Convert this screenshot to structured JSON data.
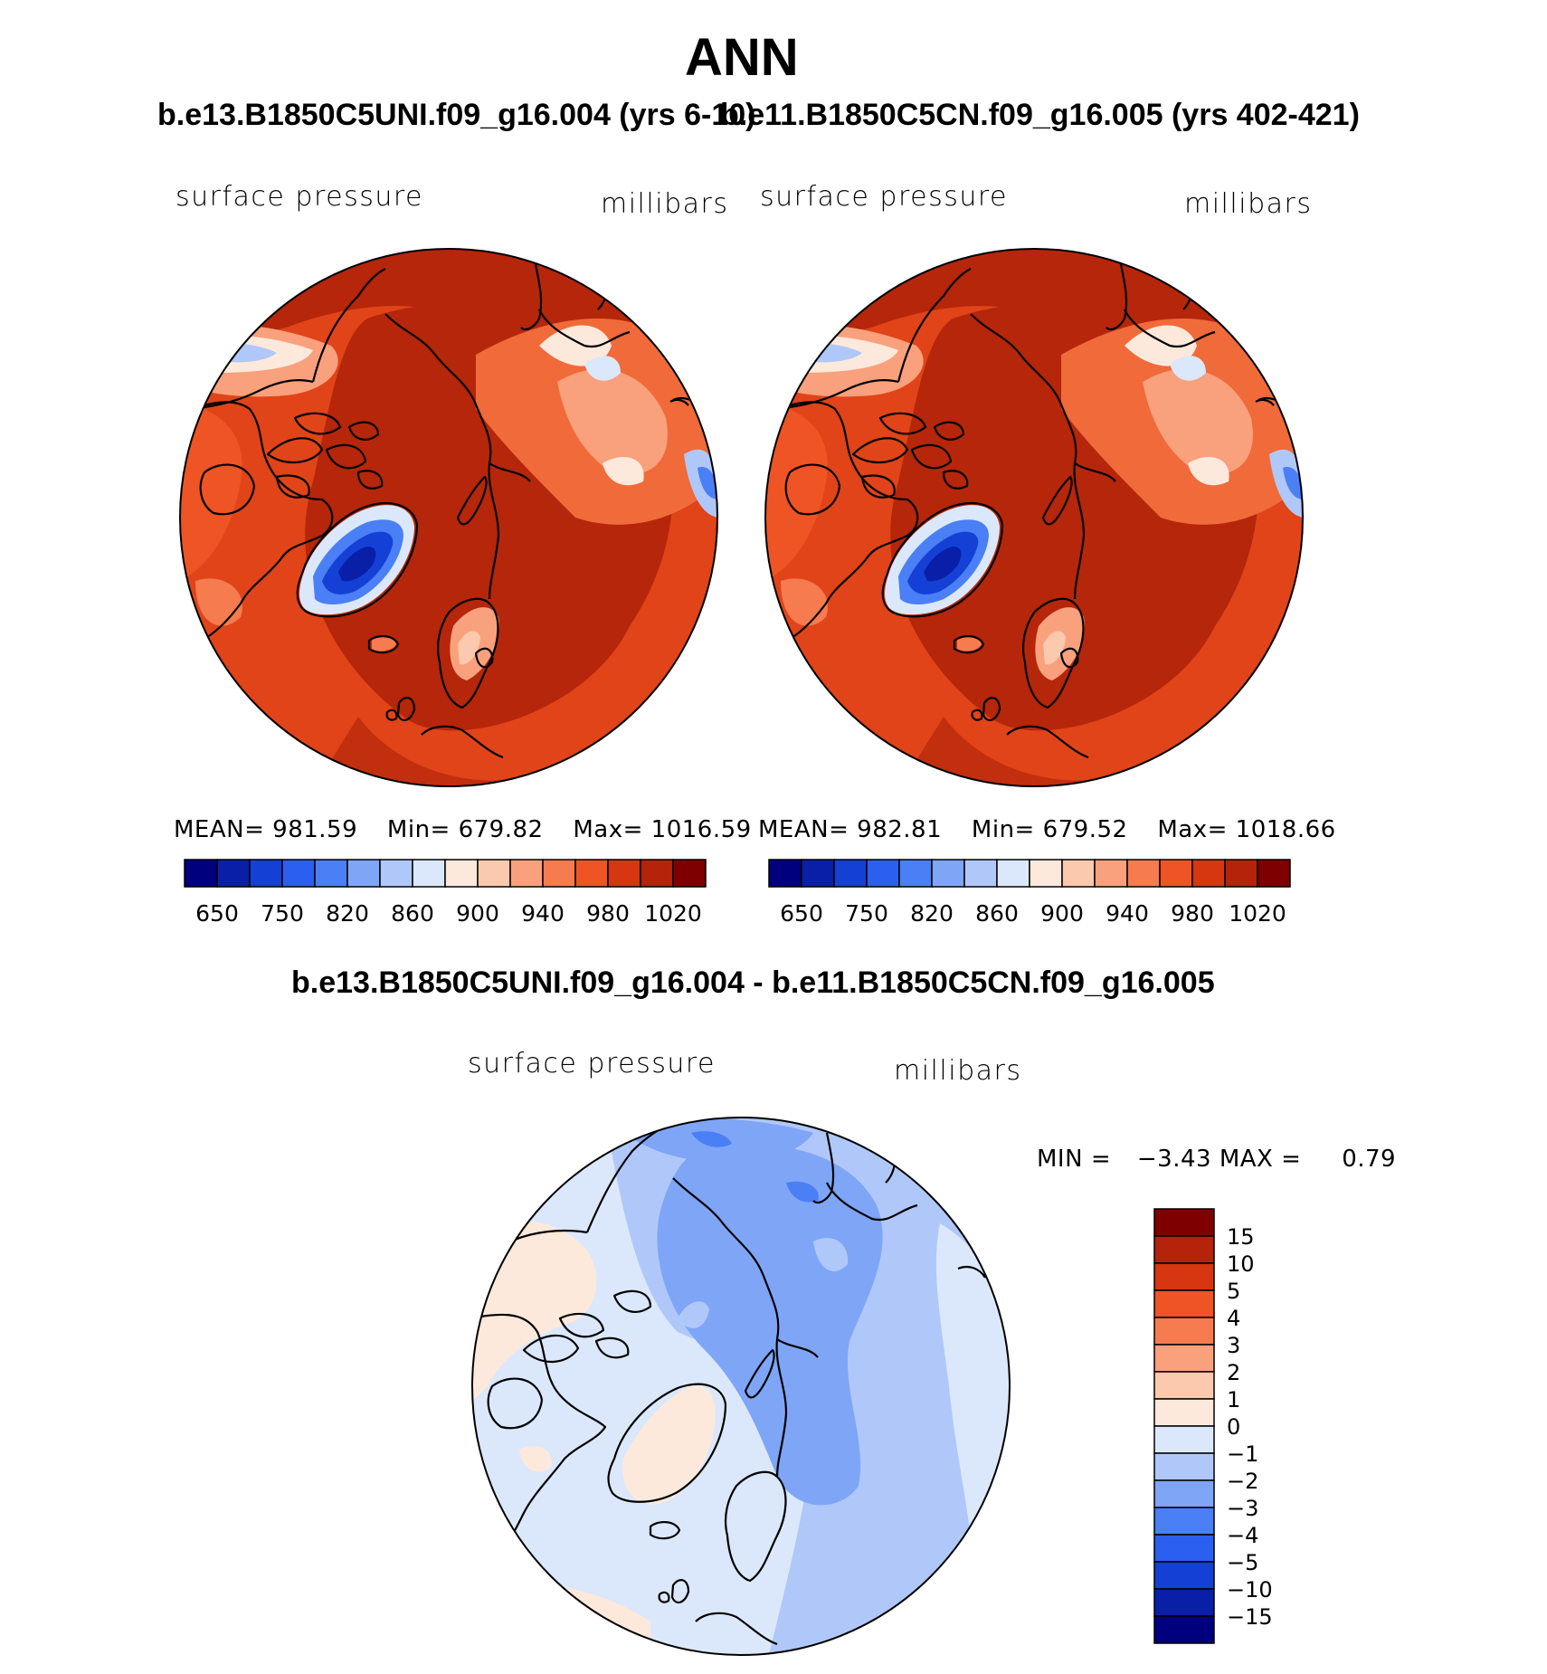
{
  "page": {
    "title": "ANN",
    "case1_title": "b.e13.B1850C5UNI.f09_g16.004 (yrs 6-10)",
    "case2_title": "b.e11.B1850C5CN.f09_g16.005 (yrs 402-421)",
    "diff_title": "b.e13.B1850C5UNI.f09_g16.004 - b.e11.B1850C5CN.f09_g16.005"
  },
  "colors": {
    "abs_scale": [
      "#00007f",
      "#0a1fa8",
      "#1540d6",
      "#2a5ff0",
      "#4a7ff5",
      "#7fa5f7",
      "#afc8f9",
      "#dbe8fb",
      "#fde9dc",
      "#fbc9ad",
      "#f9a07c",
      "#f67b4f",
      "#ef5424",
      "#d63610",
      "#b5230a",
      "#7f0000"
    ],
    "diff_scale": [
      "#00007f",
      "#0a1fa8",
      "#1540d6",
      "#2a5ff0",
      "#4a7ff5",
      "#7fa5f7",
      "#afc8f9",
      "#dbe8fb",
      "#fde9dc",
      "#fbc9ad",
      "#f9a07c",
      "#f67b4f",
      "#ef5424",
      "#d63610",
      "#b5230a",
      "#7f0000"
    ]
  },
  "chart_data": [
    {
      "type": "polar-contour-map",
      "title": "b.e13.B1850C5UNI.f09_g16.004 (yrs 6-10)",
      "variable": "surface pressure",
      "units": "millibars",
      "stats": {
        "mean_label": "MEAN=",
        "mean": "981.59",
        "min_label": "Min=",
        "min": "679.82",
        "max_label": "Max=",
        "max": "1016.59"
      },
      "colorbar_ticks": [
        "650",
        "750",
        "820",
        "860",
        "900",
        "940",
        "980",
        "1020"
      ],
      "levels": [
        650,
        700,
        750,
        800,
        820,
        840,
        860,
        880,
        900,
        920,
        940,
        960,
        980,
        1000,
        1020
      ]
    },
    {
      "type": "polar-contour-map",
      "title": "b.e11.B1850C5CN.f09_g16.005 (yrs 402-421)",
      "variable": "surface pressure",
      "units": "millibars",
      "stats": {
        "mean_label": "MEAN=",
        "mean": "982.81",
        "min_label": "Min=",
        "min": "679.52",
        "max_label": "Max=",
        "max": "1018.66"
      },
      "colorbar_ticks": [
        "650",
        "750",
        "820",
        "860",
        "900",
        "940",
        "980",
        "1020"
      ],
      "levels": [
        650,
        700,
        750,
        800,
        820,
        840,
        860,
        880,
        900,
        920,
        940,
        960,
        980,
        1000,
        1020
      ]
    },
    {
      "type": "polar-contour-map",
      "title": "b.e13.B1850C5UNI.f09_g16.004 - b.e11.B1850C5CN.f09_g16.005",
      "variable": "surface pressure",
      "units": "millibars",
      "stats": {
        "min_label": "MIN =",
        "min": "−3.43",
        "max_label": "MAX =",
        "max": "0.79"
      },
      "colorbar_ticks": [
        "15",
        "10",
        "5",
        "4",
        "3",
        "2",
        "1",
        "0",
        "−1",
        "−2",
        "−3",
        "−4",
        "−5",
        "−10",
        "−15"
      ]
    }
  ]
}
